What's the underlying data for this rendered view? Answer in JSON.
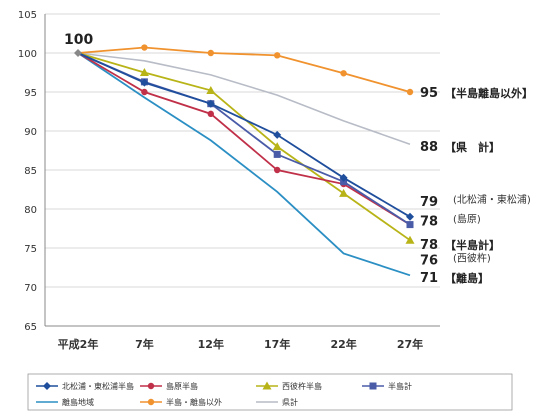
{
  "chart_data": {
    "type": "line",
    "title": "",
    "xlabel": "",
    "ylabel": "",
    "categories": [
      "平成2年",
      "7年",
      "12年",
      "17年",
      "22年",
      "27年"
    ],
    "ylim": [
      65,
      105
    ],
    "yticks": [
      65,
      70,
      75,
      80,
      85,
      90,
      95,
      100,
      105
    ],
    "grid": "horizontal",
    "legend_position": "bottom",
    "start_label": "100",
    "series": [
      {
        "name": "北松浦・東松浦半島",
        "color": "#1f4e9c",
        "marker": "diamond",
        "values": [
          100,
          96.2,
          93.5,
          89.5,
          84,
          79
        ]
      },
      {
        "name": "島原半島",
        "color": "#c03048",
        "marker": "circle",
        "values": [
          100,
          95,
          92.2,
          85,
          83.2,
          78
        ]
      },
      {
        "name": "西彼杵半島",
        "color": "#b8b418",
        "marker": "triangle",
        "values": [
          100,
          97.5,
          95.2,
          88,
          82,
          76
        ]
      },
      {
        "name": "半島計",
        "color": "#4a5ba8",
        "marker": "square",
        "values": [
          100,
          96.3,
          93.5,
          87,
          83.5,
          78
        ]
      },
      {
        "name": "離島地域",
        "color": "#2b8fc4",
        "marker": "none",
        "values": [
          100,
          94.3,
          88.8,
          82.2,
          74.3,
          71.5
        ]
      },
      {
        "name": "半島・離島以外",
        "color": "#f0922e",
        "marker": "circle",
        "values": [
          100,
          100.7,
          100,
          99.7,
          97.4,
          95
        ]
      },
      {
        "name": "県計",
        "color": "#b8bcc6",
        "marker": "none",
        "values": [
          100,
          99,
          97.2,
          94.6,
          91.3,
          88.3
        ]
      }
    ],
    "end_labels": [
      {
        "value": "95",
        "y": 95,
        "tag": "【半島離島以外】"
      },
      {
        "value": "88",
        "y": 88.1,
        "tag": "【県　計】"
      },
      {
        "value": "79",
        "y": 81,
        "tag": "(北松浦・東松浦)"
      },
      {
        "value": "78",
        "y": 78.5,
        "tag": "(島原)"
      },
      {
        "value": "78",
        "y": 75.5,
        "tag": "【半島計】"
      },
      {
        "value": "76",
        "y": 73.5,
        "tag": "(西彼杵)"
      },
      {
        "value": "71",
        "y": 71.3,
        "tag": "【離島】"
      }
    ]
  }
}
